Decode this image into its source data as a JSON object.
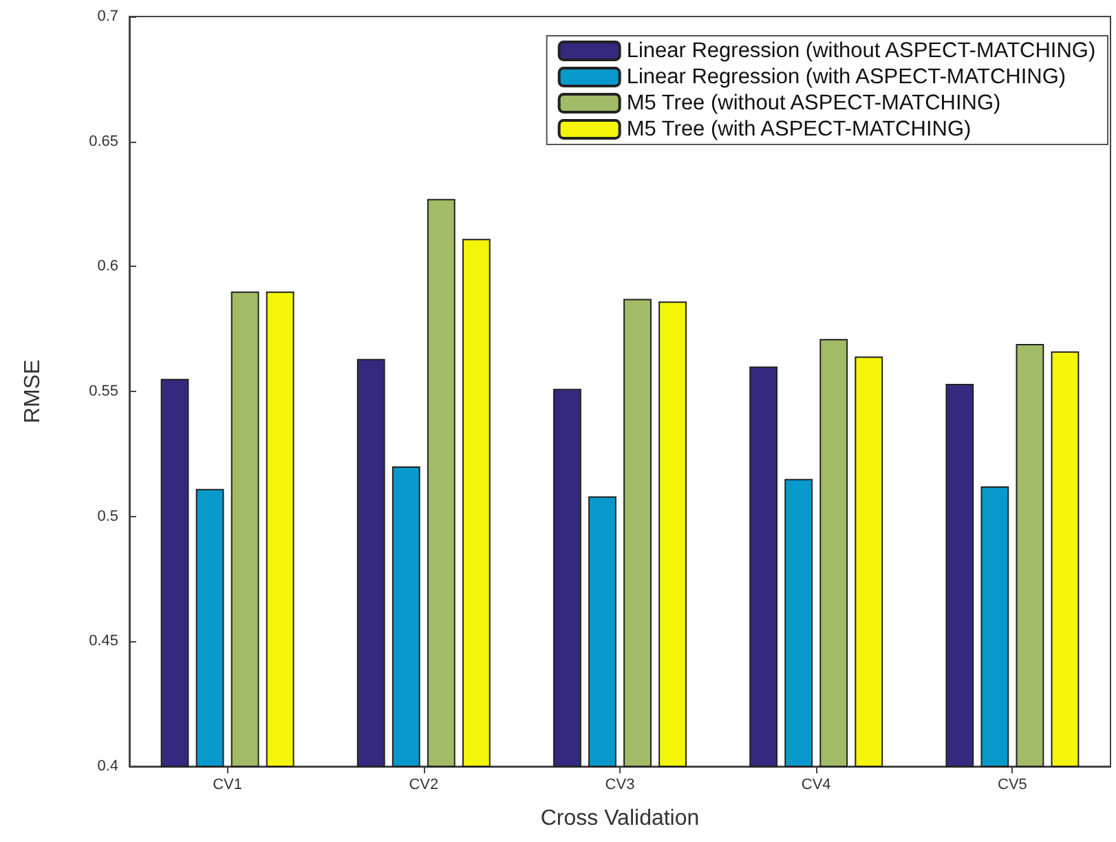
{
  "chart_data": {
    "type": "bar",
    "xlabel": "Cross Validation",
    "ylabel": "RMSE",
    "categories": [
      "CV1",
      "CV2",
      "CV3",
      "CV4",
      "CV5"
    ],
    "series": [
      {
        "name": "Linear Regression (without ASPECT-MATCHING)",
        "color": "#332a7f",
        "values": [
          0.555,
          0.563,
          0.551,
          0.56,
          0.553
        ]
      },
      {
        "name": "Linear Regression (with ASPECT-MATCHING)",
        "color": "#0899cc",
        "values": [
          0.511,
          0.52,
          0.508,
          0.515,
          0.512
        ]
      },
      {
        "name": "M5 Tree (without ASPECT-MATCHING)",
        "color": "#a2bb66",
        "values": [
          0.59,
          0.627,
          0.587,
          0.571,
          0.569
        ]
      },
      {
        "name": "M5 Tree (with ASPECT-MATCHING)",
        "color": "#f5f50a",
        "values": [
          0.59,
          0.611,
          0.586,
          0.564,
          0.566
        ]
      }
    ],
    "ylim": [
      0.4,
      0.7
    ],
    "yticks": [
      0.4,
      0.45,
      0.5,
      0.55,
      0.6,
      0.65,
      0.7
    ],
    "grid": false,
    "legend": "top right"
  }
}
